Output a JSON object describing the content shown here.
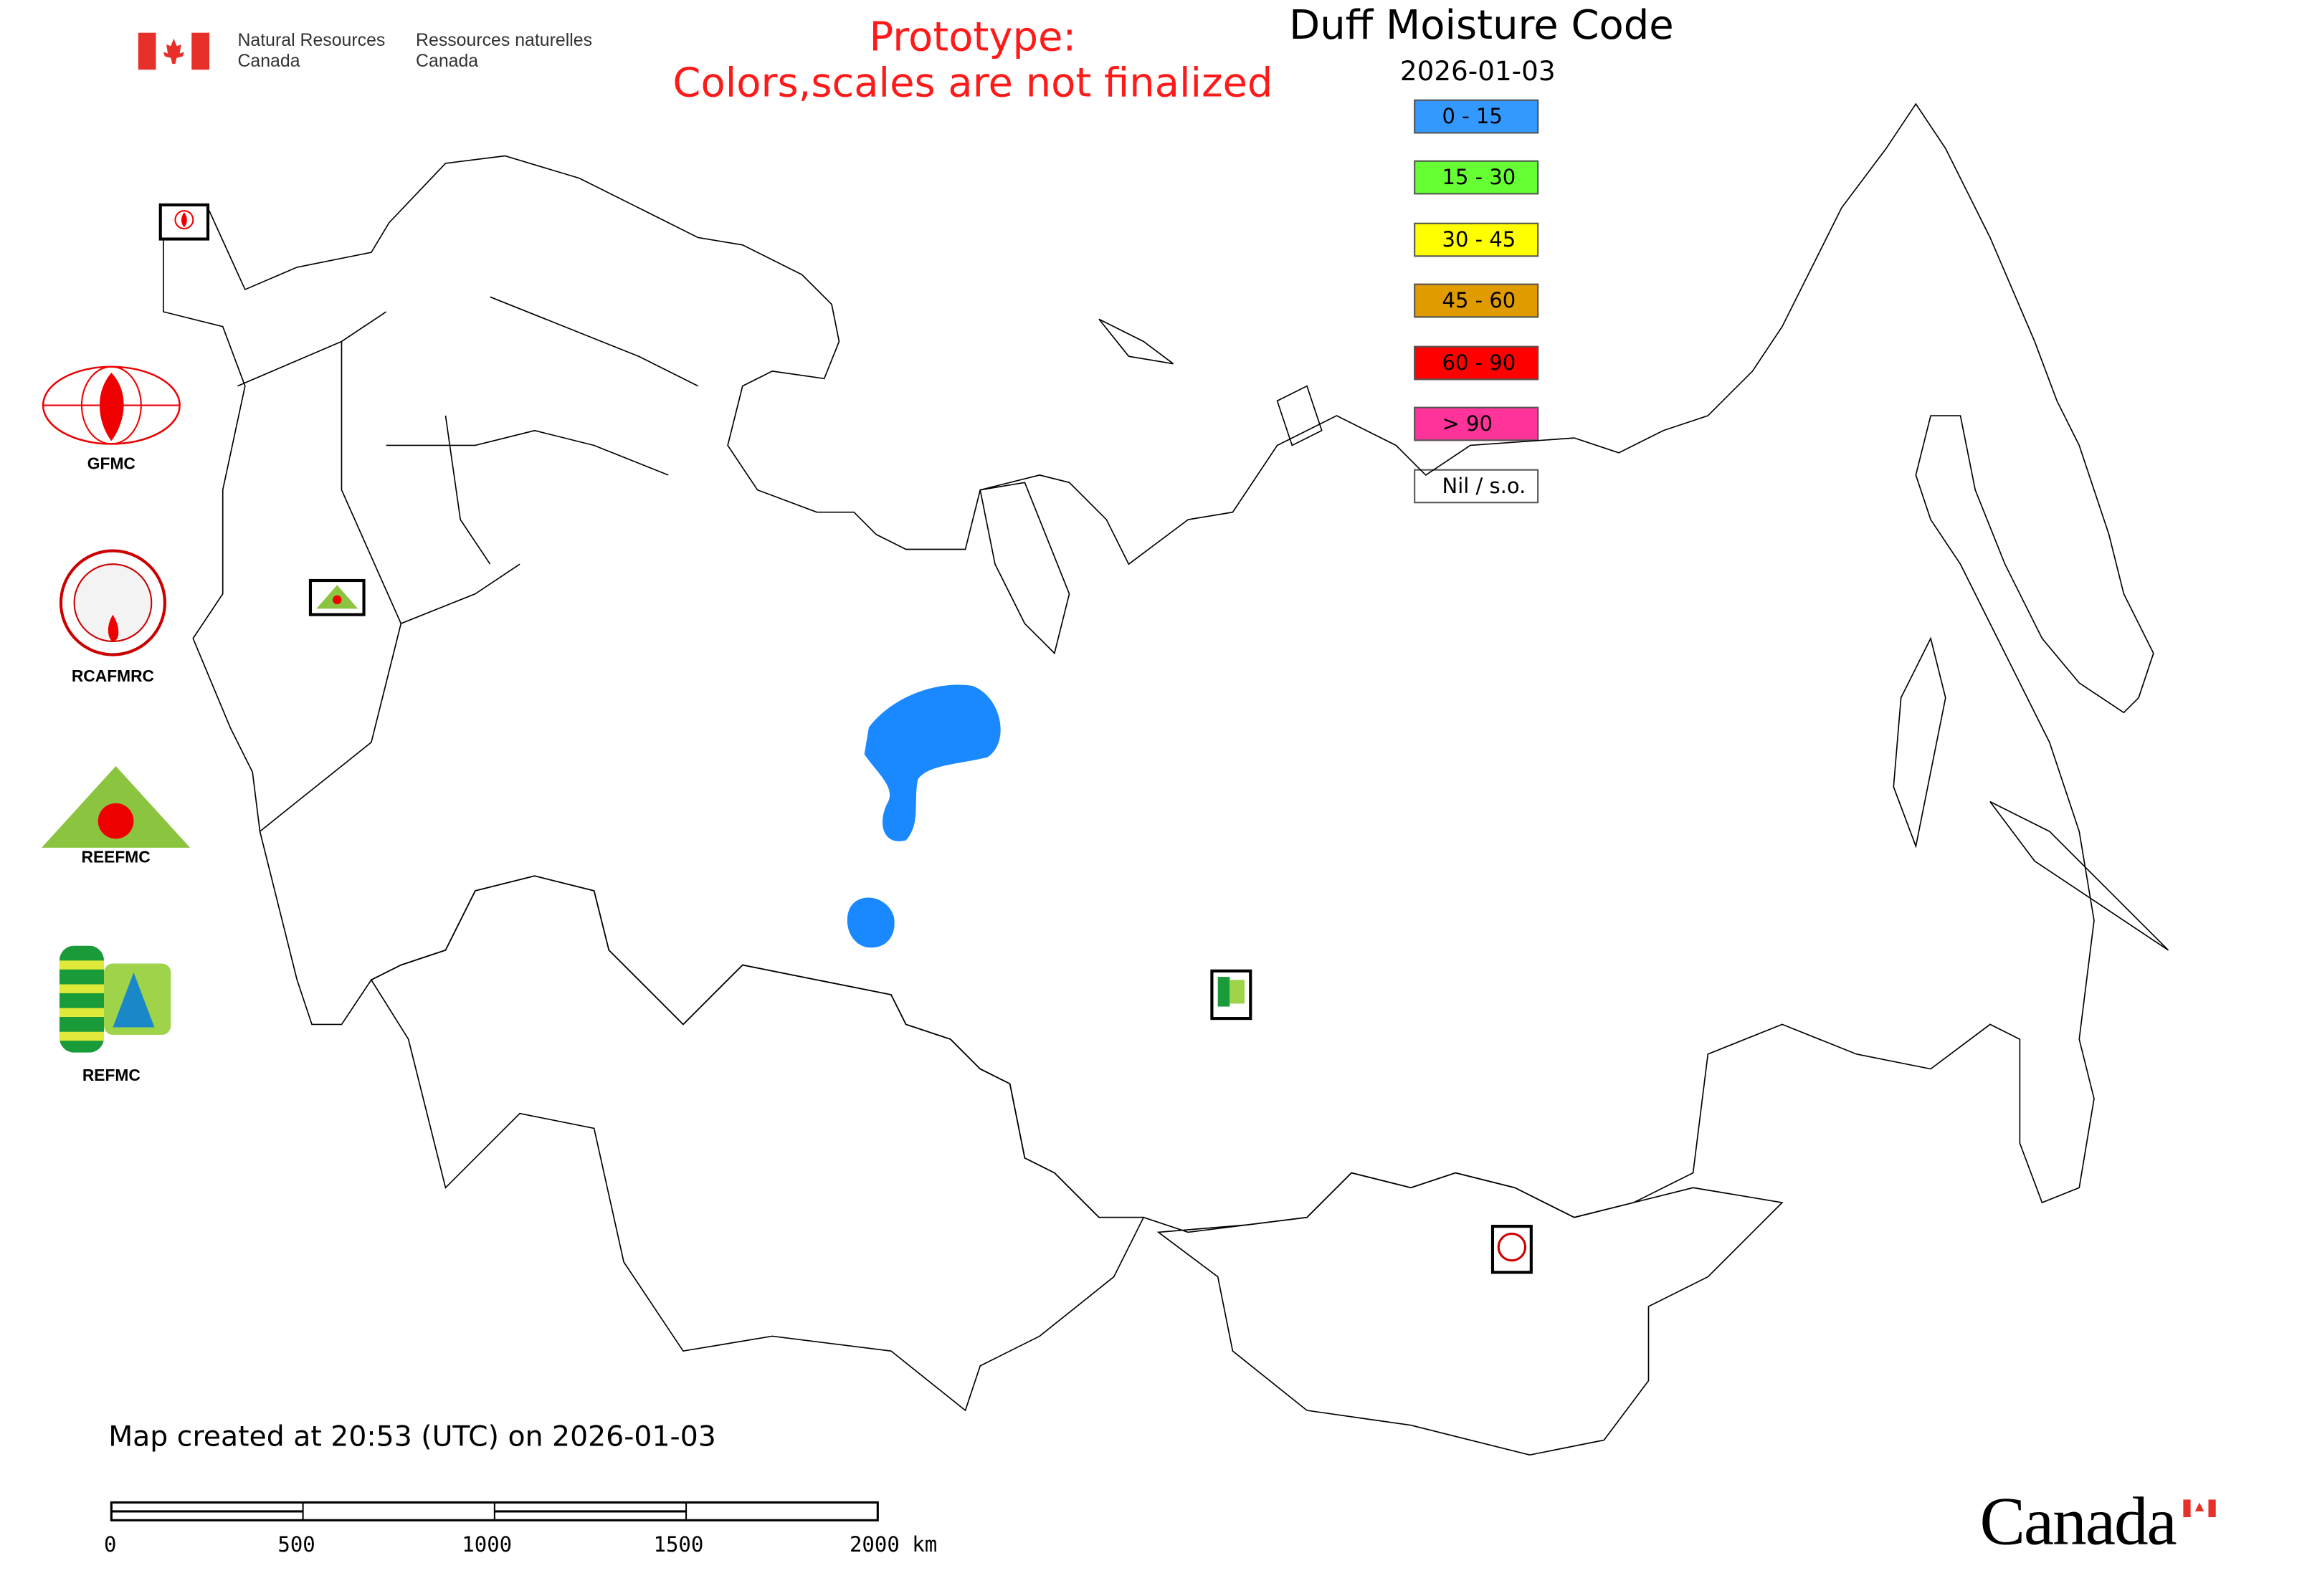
{
  "header": {
    "agency_en": [
      "Natural Resources",
      "Canada"
    ],
    "agency_fr": [
      "Ressources naturelles",
      "Canada"
    ],
    "prototype_line1": "Prototype:",
    "prototype_line2": "Colors,scales are not finalized",
    "title": "Duff Moisture Code",
    "date": "2026-01-03"
  },
  "legend": {
    "items": [
      {
        "label": "0 - 15",
        "color": "#3399ff"
      },
      {
        "label": "15 - 30",
        "color": "#66ff33"
      },
      {
        "label": "30 - 45",
        "color": "#ffff00"
      },
      {
        "label": "45 - 60",
        "color": "#e09b00"
      },
      {
        "label": "60 - 90",
        "color": "#ff0000"
      },
      {
        "label": "> 90",
        "color": "#ff3399"
      },
      {
        "label": "Nil / s.o.",
        "color": "#ffffff"
      }
    ]
  },
  "logos": {
    "gfmc": "GFMC",
    "rcafmrc": "RCAFMRC",
    "reefmc": "REEFMC",
    "refmc": "REFMC"
  },
  "map": {
    "data_color": "#1a88ff",
    "data_category": "0 - 15"
  },
  "footer": {
    "created": "Map created at 20:53 (UTC) on 2026-01-03",
    "scale_labels": [
      "0",
      "500",
      "1000",
      "1500",
      "2000 km"
    ],
    "wordmark": "Canada"
  }
}
